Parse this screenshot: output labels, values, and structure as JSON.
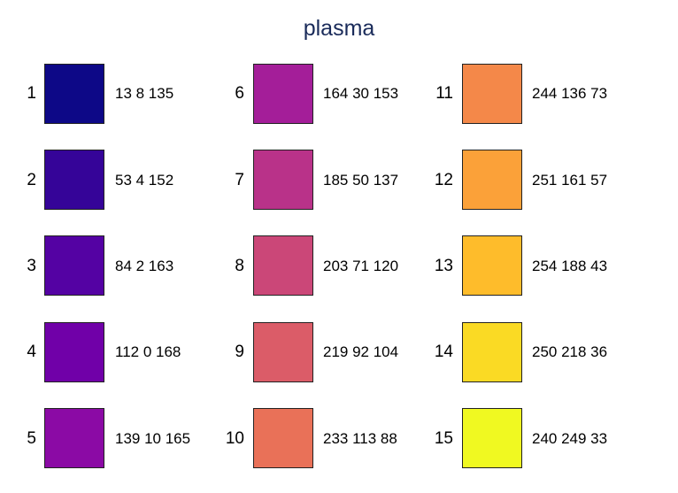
{
  "title": "plasma",
  "colors": [
    {
      "index": "1",
      "rgb_text": "13 8 135",
      "hex": "#0d0887"
    },
    {
      "index": "2",
      "rgb_text": "53 4 152",
      "hex": "#350498"
    },
    {
      "index": "3",
      "rgb_text": "84 2 163",
      "hex": "#5402a3"
    },
    {
      "index": "4",
      "rgb_text": "112 0 168",
      "hex": "#7000a8"
    },
    {
      "index": "5",
      "rgb_text": "139 10 165",
      "hex": "#8b0aa5"
    },
    {
      "index": "6",
      "rgb_text": "164 30 153",
      "hex": "#a41e99"
    },
    {
      "index": "7",
      "rgb_text": "185 50 137",
      "hex": "#b93289"
    },
    {
      "index": "8",
      "rgb_text": "203 71 120",
      "hex": "#cb4778"
    },
    {
      "index": "9",
      "rgb_text": "219 92 104",
      "hex": "#db5c68"
    },
    {
      "index": "10",
      "rgb_text": "233 113 88",
      "hex": "#e97158"
    },
    {
      "index": "11",
      "rgb_text": "244 136 73",
      "hex": "#f48849"
    },
    {
      "index": "12",
      "rgb_text": "251 161 57",
      "hex": "#fba139"
    },
    {
      "index": "13",
      "rgb_text": "254 188 43",
      "hex": "#febc2b"
    },
    {
      "index": "14",
      "rgb_text": "250 218 36",
      "hex": "#fada24"
    },
    {
      "index": "15",
      "rgb_text": "240 249 33",
      "hex": "#f0f921"
    }
  ]
}
